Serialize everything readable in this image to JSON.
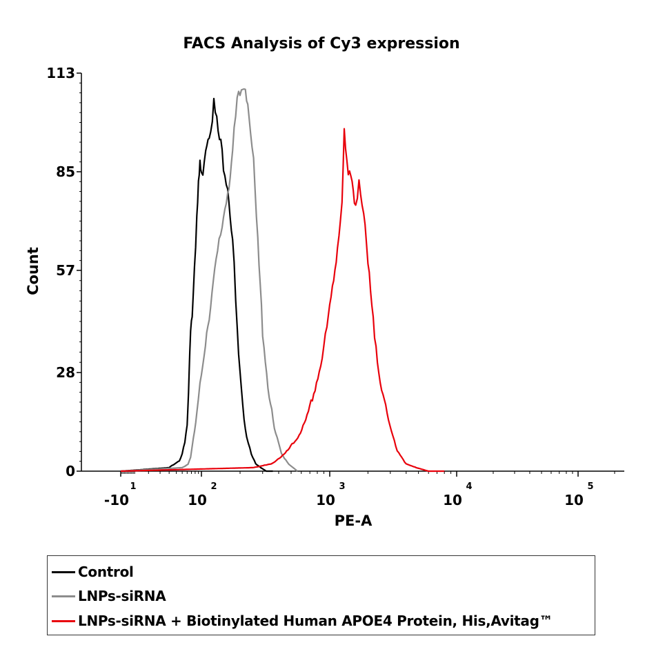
{
  "chart_data": {
    "type": "line",
    "title": "FACS Analysis of Cy3 expression",
    "xlabel": "PE-A",
    "ylabel": "Count",
    "x_scale": "logicle",
    "ylim": [
      0,
      113
    ],
    "y_ticks": [
      0,
      28,
      57,
      85,
      113
    ],
    "x_ticks": [
      {
        "value": -10,
        "base": "-10",
        "exp": "1"
      },
      {
        "value": 100,
        "base": "10",
        "exp": "2"
      },
      {
        "value": 1000,
        "base": "10",
        "exp": "3"
      },
      {
        "value": 10000,
        "base": "10",
        "exp": "4"
      },
      {
        "value": 100000,
        "base": "10",
        "exp": "5"
      }
    ],
    "grid": false,
    "legend_position": "bottom",
    "series": [
      {
        "name": "Control",
        "color": "#000000",
        "x": [
          -10,
          30,
          45,
          50,
          55,
          60,
          63,
          66,
          68,
          72,
          78,
          85,
          90,
          95,
          100,
          108,
          115,
          125,
          135,
          145,
          160,
          175,
          185,
          195,
          210,
          225,
          245,
          265,
          290,
          320,
          360
        ],
        "y": [
          0,
          1,
          3,
          5,
          8,
          13,
          22,
          34,
          41,
          45,
          60,
          72,
          80,
          88,
          83,
          93,
          97,
          104,
          96,
          90,
          82,
          66,
          48,
          32,
          18,
          10,
          5,
          2,
          1,
          0,
          0
        ]
      },
      {
        "name": "LNPs-siRNA",
        "color": "#8c8c8c",
        "x": [
          -10,
          50,
          62,
          68,
          75,
          85,
          95,
          105,
          115,
          130,
          145,
          160,
          175,
          190,
          205,
          220,
          235,
          255,
          275,
          300,
          330,
          370,
          420,
          480,
          560
        ],
        "y": [
          0,
          1,
          2,
          4,
          9,
          16,
          24,
          34,
          45,
          58,
          70,
          80,
          90,
          104,
          108,
          110,
          103,
          86,
          64,
          40,
          24,
          12,
          5,
          2,
          0
        ]
      },
      {
        "name": "LNPs-siRNA + Biotinylated Human APOE4 Protein, His,Avitag™",
        "color": "#e8000b",
        "x": [
          -10,
          250,
          350,
          450,
          550,
          650,
          750,
          850,
          950,
          1050,
          1150,
          1250,
          1300,
          1400,
          1500,
          1600,
          1700,
          1850,
          2000,
          2200,
          2500,
          2900,
          3400,
          4000,
          4800,
          6000,
          8000
        ],
        "y": [
          0,
          1,
          2,
          5,
          9,
          14,
          22,
          30,
          40,
          52,
          64,
          78,
          95,
          83,
          82,
          77,
          83,
          72,
          58,
          42,
          26,
          14,
          6,
          2,
          1,
          0,
          0
        ]
      }
    ]
  },
  "legend": {
    "items": [
      {
        "label": "Control",
        "color": "#000000"
      },
      {
        "label": "LNPs-siRNA",
        "color": "#8c8c8c"
      },
      {
        "label": "LNPs-siRNA + Biotinylated Human APOE4 Protein, His,Avitag™",
        "color": "#e8000b"
      }
    ]
  }
}
